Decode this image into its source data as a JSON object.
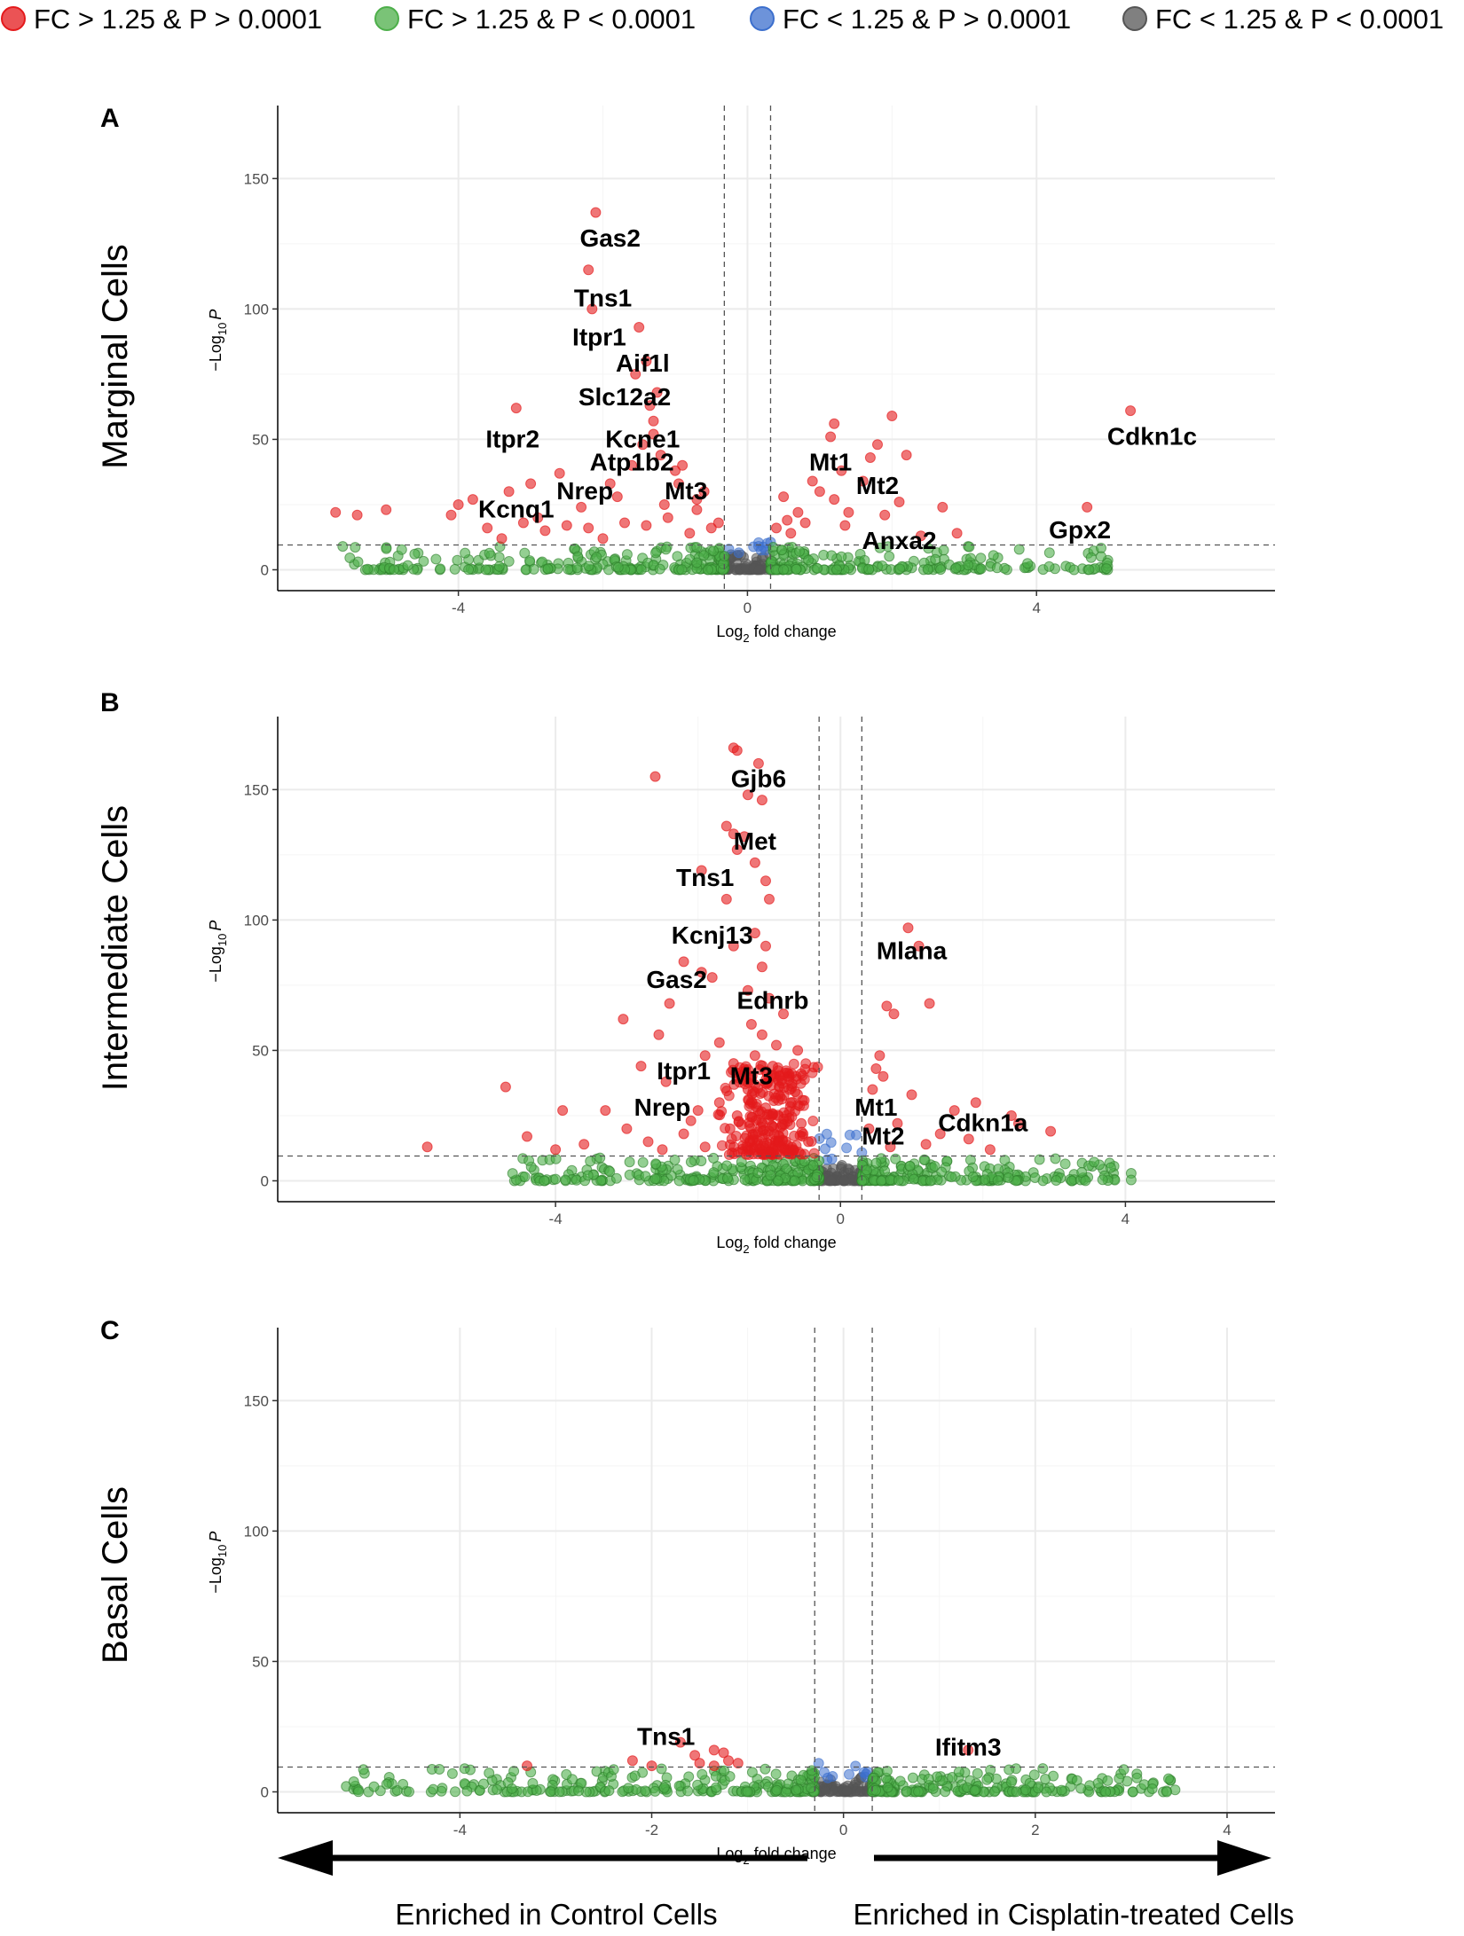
{
  "legend": [
    {
      "label": "FC > 1.25 & P > 0.0001",
      "color": "#e41a1c"
    },
    {
      "label": "FC > 1.25 & P < 0.0001",
      "color": "#4daf4a"
    },
    {
      "label": "FC < 1.25 & P > 0.0001",
      "color": "#3c6fcd"
    },
    {
      "label": "FC < 1.25 & P < 0.0001",
      "color": "#555555"
    }
  ],
  "axis": {
    "xlabel_main": "Log",
    "xlabel_sub": "2",
    "xlabel_tail": " fold change",
    "ylabel_prefix": "−Log",
    "ylabel_sub": "10",
    "ylabel_tail": "P"
  },
  "captions": {
    "left": "Enriched in Control Cells",
    "right": "Enriched in Cisplatin-treated Cells"
  },
  "chart_data": [
    {
      "type": "scatter",
      "panel": "A",
      "row_label": "Marginal Cells",
      "xlim": [
        -6.5,
        7.3
      ],
      "ylim": [
        -8,
        178
      ],
      "xticks": [
        -4,
        0,
        4
      ],
      "yticks": [
        0,
        50,
        100,
        150
      ],
      "fc_cutoff": [
        -0.32,
        0.32
      ],
      "p_cutoff": 9.5,
      "neg_range": [
        -5.6,
        -0.32
      ],
      "pos_range": [
        0.32,
        5.0
      ],
      "red_points": [
        [
          -2.1,
          137
        ],
        [
          -2.2,
          115
        ],
        [
          -2.15,
          100
        ],
        [
          -1.5,
          93
        ],
        [
          -1.4,
          80
        ],
        [
          -1.55,
          75
        ],
        [
          -1.25,
          68
        ],
        [
          -1.35,
          63
        ],
        [
          -1.3,
          57
        ],
        [
          -3.2,
          62
        ],
        [
          -1.3,
          52
        ],
        [
          -1.45,
          48
        ],
        [
          -1.2,
          44
        ],
        [
          -1.6,
          40
        ],
        [
          -0.9,
          40
        ],
        [
          -1.0,
          38
        ],
        [
          -2.6,
          37
        ],
        [
          -3.0,
          33
        ],
        [
          -1.9,
          33
        ],
        [
          -3.3,
          30
        ],
        [
          -1.8,
          28
        ],
        [
          -3.8,
          27
        ],
        [
          -4.0,
          25
        ],
        [
          -5.0,
          23
        ],
        [
          -2.3,
          24
        ],
        [
          -2.9,
          20
        ],
        [
          -5.4,
          21
        ],
        [
          -5.7,
          22
        ],
        [
          -4.1,
          21
        ],
        [
          -3.1,
          18
        ],
        [
          -2.5,
          17
        ],
        [
          -2.2,
          16
        ],
        [
          -1.7,
          18
        ],
        [
          -0.7,
          23
        ],
        [
          -0.6,
          30
        ],
        [
          -1.1,
          20
        ],
        [
          -3.6,
          16
        ],
        [
          -2.8,
          15
        ],
        [
          -1.4,
          17
        ],
        [
          -0.5,
          16
        ],
        [
          -0.8,
          14
        ],
        [
          -3.4,
          12
        ],
        [
          -2.0,
          12
        ],
        [
          -0.95,
          33
        ],
        [
          -0.7,
          27
        ],
        [
          -0.4,
          18
        ],
        [
          -1.15,
          25
        ],
        [
          1.2,
          56
        ],
        [
          1.15,
          51
        ],
        [
          2.0,
          59
        ],
        [
          1.8,
          48
        ],
        [
          1.7,
          43
        ],
        [
          2.2,
          44
        ],
        [
          1.3,
          38
        ],
        [
          0.9,
          34
        ],
        [
          1.0,
          30
        ],
        [
          1.6,
          34
        ],
        [
          0.5,
          28
        ],
        [
          2.1,
          26
        ],
        [
          2.7,
          24
        ],
        [
          1.4,
          22
        ],
        [
          0.7,
          22
        ],
        [
          0.4,
          16
        ],
        [
          0.6,
          14
        ],
        [
          2.9,
          14
        ],
        [
          1.9,
          21
        ],
        [
          5.3,
          61
        ],
        [
          4.7,
          24
        ],
        [
          0.55,
          19
        ],
        [
          1.35,
          17
        ],
        [
          2.4,
          13
        ],
        [
          1.2,
          27
        ],
        [
          0.8,
          18
        ]
      ],
      "labels": [
        {
          "text": "Gas2",
          "x": -1.9,
          "y": 124
        },
        {
          "text": "Tns1",
          "x": -2.0,
          "y": 101
        },
        {
          "text": "Itpr1",
          "x": -2.05,
          "y": 86
        },
        {
          "text": "Aif1l",
          "x": -1.45,
          "y": 76
        },
        {
          "text": "Slc12a2",
          "x": -1.7,
          "y": 63
        },
        {
          "text": "Itpr2",
          "x": -3.25,
          "y": 47
        },
        {
          "text": "Kcne1",
          "x": -1.45,
          "y": 47
        },
        {
          "text": "Atp1b2",
          "x": -1.6,
          "y": 38
        },
        {
          "text": "Nrep",
          "x": -2.25,
          "y": 27
        },
        {
          "text": "Mt3",
          "x": -0.85,
          "y": 27
        },
        {
          "text": "Kcnq1",
          "x": -3.2,
          "y": 20
        },
        {
          "text": "Mt1",
          "x": 1.15,
          "y": 38
        },
        {
          "text": "Mt2",
          "x": 1.8,
          "y": 29
        },
        {
          "text": "Anxa2",
          "x": 2.1,
          "y": 8
        },
        {
          "text": "Cdkn1c",
          "x": 5.6,
          "y": 48
        },
        {
          "text": "Gpx2",
          "x": 4.6,
          "y": 12
        }
      ]
    },
    {
      "type": "scatter",
      "panel": "B",
      "row_label": "Intermediate Cells",
      "xlim": [
        -7.9,
        6.1
      ],
      "ylim": [
        -8,
        178
      ],
      "xticks": [
        -4,
        0,
        4
      ],
      "yticks": [
        0,
        50,
        100,
        150
      ],
      "fc_cutoff": [
        -0.3,
        0.3
      ],
      "p_cutoff": 9.5,
      "neg_range": [
        -4.7,
        -0.3
      ],
      "pos_range": [
        0.3,
        4.1
      ],
      "red_points": [
        [
          -1.5,
          166
        ],
        [
          -1.45,
          165
        ],
        [
          -1.15,
          160
        ],
        [
          -2.6,
          155
        ],
        [
          -1.1,
          146
        ],
        [
          -1.3,
          148
        ],
        [
          -1.6,
          136
        ],
        [
          -1.5,
          133
        ],
        [
          -1.35,
          132
        ],
        [
          -1.45,
          127
        ],
        [
          -1.95,
          119
        ],
        [
          -1.2,
          122
        ],
        [
          -1.05,
          115
        ],
        [
          -1.6,
          108
        ],
        [
          -1.0,
          108
        ],
        [
          -1.2,
          95
        ],
        [
          -1.5,
          90
        ],
        [
          -1.05,
          90
        ],
        [
          -2.2,
          84
        ],
        [
          -1.95,
          80
        ],
        [
          -1.1,
          82
        ],
        [
          -1.8,
          78
        ],
        [
          -1.3,
          73
        ],
        [
          -1.0,
          70
        ],
        [
          -2.4,
          68
        ],
        [
          -0.8,
          64
        ],
        [
          -1.25,
          60
        ],
        [
          -1.1,
          56
        ],
        [
          -2.55,
          56
        ],
        [
          -1.7,
          53
        ],
        [
          -3.05,
          62
        ],
        [
          -1.9,
          48
        ],
        [
          -1.5,
          45
        ],
        [
          -0.95,
          44
        ],
        [
          -2.8,
          44
        ],
        [
          -2.45,
          38
        ],
        [
          -4.7,
          36
        ],
        [
          -3.9,
          27
        ],
        [
          -3.3,
          27
        ],
        [
          -2.1,
          23
        ],
        [
          -4.4,
          17
        ],
        [
          -3.6,
          14
        ],
        [
          -5.8,
          13
        ],
        [
          -4.0,
          12
        ],
        [
          -2.7,
          15
        ],
        [
          -0.7,
          30
        ],
        [
          -0.55,
          22
        ],
        [
          -1.3,
          35
        ],
        [
          -0.85,
          40
        ],
        [
          -1.7,
          30
        ],
        [
          -2.2,
          18
        ],
        [
          -1.45,
          25
        ],
        [
          -1.05,
          28
        ],
        [
          -0.6,
          50
        ],
        [
          -0.9,
          52
        ],
        [
          -1.2,
          48
        ],
        [
          -2.0,
          27
        ],
        [
          -1.55,
          20
        ],
        [
          -3.0,
          20
        ],
        [
          -0.45,
          15
        ],
        [
          -1.9,
          13
        ],
        [
          -2.5,
          12
        ],
        [
          0.95,
          97
        ],
        [
          1.1,
          90
        ],
        [
          1.25,
          68
        ],
        [
          0.75,
          64
        ],
        [
          0.65,
          67
        ],
        [
          0.55,
          48
        ],
        [
          0.5,
          43
        ],
        [
          0.6,
          40
        ],
        [
          0.45,
          35
        ],
        [
          1.0,
          33
        ],
        [
          1.9,
          30
        ],
        [
          1.6,
          27
        ],
        [
          2.4,
          25
        ],
        [
          2.5,
          22
        ],
        [
          2.95,
          19
        ],
        [
          0.8,
          22
        ],
        [
          0.4,
          20
        ],
        [
          1.4,
          18
        ],
        [
          1.8,
          16
        ],
        [
          0.7,
          13
        ],
        [
          1.2,
          14
        ],
        [
          2.1,
          12
        ]
      ],
      "cluster": {
        "x_center": -1.0,
        "x_spread": 0.6,
        "y_max": 45,
        "count": 260
      },
      "labels": [
        {
          "text": "Gjb6",
          "x": -1.15,
          "y": 151
        },
        {
          "text": "Met",
          "x": -1.2,
          "y": 127
        },
        {
          "text": "Tns1",
          "x": -1.9,
          "y": 113
        },
        {
          "text": "Kcnj13",
          "x": -1.8,
          "y": 91
        },
        {
          "text": "Gas2",
          "x": -2.3,
          "y": 74
        },
        {
          "text": "Ednrb",
          "x": -0.95,
          "y": 66
        },
        {
          "text": "Itpr1",
          "x": -2.2,
          "y": 39
        },
        {
          "text": "Mt3",
          "x": -1.25,
          "y": 37
        },
        {
          "text": "Nrep",
          "x": -2.5,
          "y": 25
        },
        {
          "text": "Mlana",
          "x": 1.0,
          "y": 85
        },
        {
          "text": "Mt1",
          "x": 0.5,
          "y": 25
        },
        {
          "text": "Mt2",
          "x": 0.6,
          "y": 14
        },
        {
          "text": "Cdkn1a",
          "x": 2.0,
          "y": 19
        }
      ]
    },
    {
      "type": "scatter",
      "panel": "C",
      "row_label": "Basal Cells",
      "xlim": [
        -5.9,
        4.5
      ],
      "ylim": [
        -8,
        178
      ],
      "xticks": [
        -4,
        -2,
        0,
        2,
        4
      ],
      "yticks": [
        0,
        50,
        100,
        150
      ],
      "fc_cutoff": [
        -0.3,
        0.3
      ],
      "p_cutoff": 9.5,
      "neg_range": [
        -5.2,
        -0.3
      ],
      "pos_range": [
        0.3,
        3.5
      ],
      "red_points": [
        [
          -3.3,
          10
        ],
        [
          -2.2,
          12
        ],
        [
          -1.7,
          19
        ],
        [
          -1.55,
          14
        ],
        [
          -1.35,
          16
        ],
        [
          -1.25,
          15
        ],
        [
          -1.2,
          12
        ],
        [
          -1.1,
          11
        ],
        [
          -1.5,
          11
        ],
        [
          -2.0,
          10
        ],
        [
          -1.35,
          10
        ],
        [
          1.3,
          16
        ]
      ],
      "labels": [
        {
          "text": "Tns1",
          "x": -1.85,
          "y": 18
        },
        {
          "text": "Ifitm3",
          "x": 1.3,
          "y": 14
        }
      ]
    }
  ]
}
